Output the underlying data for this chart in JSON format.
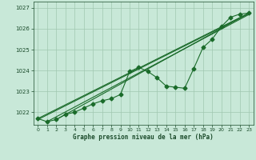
{
  "title": "Graphe pression niveau de la mer (hPa)",
  "bg_color": "#c8e8d8",
  "plot_bg_color": "#c8e8d8",
  "line_color": "#1a6b2a",
  "grid_color": "#a0c8b0",
  "tick_color": "#1a4a2a",
  "xlim": [
    -0.5,
    23.5
  ],
  "ylim": [
    1021.4,
    1027.3
  ],
  "yticks": [
    1022,
    1023,
    1024,
    1025,
    1026,
    1027
  ],
  "xticks": [
    0,
    1,
    2,
    3,
    4,
    5,
    6,
    7,
    8,
    9,
    10,
    11,
    12,
    13,
    14,
    15,
    16,
    17,
    18,
    19,
    20,
    21,
    22,
    23
  ],
  "main_data": [
    [
      0,
      1021.7
    ],
    [
      1,
      1021.55
    ],
    [
      2,
      1021.65
    ],
    [
      3,
      1021.9
    ],
    [
      4,
      1022.0
    ],
    [
      5,
      1022.2
    ],
    [
      6,
      1022.4
    ],
    [
      7,
      1022.55
    ],
    [
      8,
      1022.65
    ],
    [
      9,
      1022.85
    ],
    [
      10,
      1023.95
    ],
    [
      11,
      1024.15
    ],
    [
      12,
      1023.95
    ],
    [
      13,
      1023.65
    ],
    [
      14,
      1023.25
    ],
    [
      15,
      1023.2
    ],
    [
      16,
      1023.15
    ],
    [
      17,
      1024.1
    ],
    [
      18,
      1025.1
    ],
    [
      19,
      1025.5
    ],
    [
      20,
      1026.1
    ],
    [
      21,
      1026.55
    ],
    [
      22,
      1026.7
    ],
    [
      23,
      1026.75
    ]
  ],
  "trend_lines": [
    [
      [
        0,
        1021.7
      ],
      [
        23,
        1026.75
      ]
    ],
    [
      [
        0,
        1021.65
      ],
      [
        23,
        1026.72
      ]
    ],
    [
      [
        1,
        1021.55
      ],
      [
        23,
        1026.68
      ]
    ],
    [
      [
        2,
        1021.65
      ],
      [
        23,
        1026.75
      ]
    ]
  ]
}
